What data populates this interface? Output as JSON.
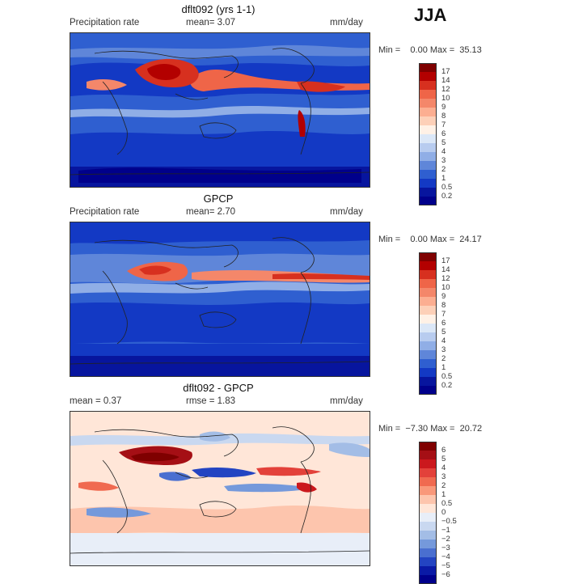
{
  "season": "JJA",
  "panels": [
    {
      "title": "dflt092 (yrs 1-1)",
      "left_label": "Precipitation rate",
      "mid_label": "mean=    3.07",
      "right_label": "mm/day",
      "minmax": "Min =    0.00 Max =  35.13",
      "kind": "model",
      "colorbar": {
        "ticks": [
          "17",
          "14",
          "12",
          "10",
          "9",
          "8",
          "7",
          "6",
          "5",
          "4",
          "3",
          "2",
          "1",
          "0.5",
          "0.2"
        ],
        "colors": [
          "#7f0000",
          "#b30000",
          "#d7301f",
          "#ef6548",
          "#f4876a",
          "#fcae91",
          "#fdd0b8",
          "#fff1e6",
          "#dbe7f7",
          "#b8ccef",
          "#90aee6",
          "#5f86d9",
          "#2f5fd0",
          "#1339c4",
          "#07159e",
          "#00008b"
        ]
      }
    },
    {
      "title": "GPCP",
      "left_label": "Precipitation rate",
      "mid_label": "mean=    2.70",
      "right_label": "mm/day",
      "minmax": "Min =    0.00 Max =  24.17",
      "kind": "obs",
      "colorbar": {
        "ticks": [
          "17",
          "14",
          "12",
          "10",
          "9",
          "8",
          "7",
          "6",
          "5",
          "4",
          "3",
          "2",
          "1",
          "0.5",
          "0.2"
        ],
        "colors": [
          "#7f0000",
          "#b30000",
          "#d7301f",
          "#ef6548",
          "#f4876a",
          "#fcae91",
          "#fdd0b8",
          "#fff1e6",
          "#dbe7f7",
          "#b8ccef",
          "#90aee6",
          "#5f86d9",
          "#2f5fd0",
          "#1339c4",
          "#07159e",
          "#00008b"
        ]
      }
    },
    {
      "title": "dflt092 - GPCP",
      "left_label": "mean =     0.37",
      "mid_label": "rmse =     1.83",
      "right_label": "mm/day",
      "minmax": "Min =  −7.30 Max =  20.72",
      "kind": "diff",
      "colorbar": {
        "ticks": [
          "6",
          "5",
          "4",
          "3",
          "2",
          "1",
          "0.5",
          "0",
          "−0.5",
          "−1",
          "−2",
          "−3",
          "−4",
          "−5",
          "−6"
        ],
        "colors": [
          "#7f0000",
          "#a50f15",
          "#cb181d",
          "#e3413a",
          "#f06a50",
          "#f9987a",
          "#fdc5ad",
          "#ffe6d8",
          "#e8eef8",
          "#c9d8f0",
          "#a3bde6",
          "#7599db",
          "#4a6fd0",
          "#2344c2",
          "#0a1aa6",
          "#00008b"
        ]
      }
    }
  ]
}
